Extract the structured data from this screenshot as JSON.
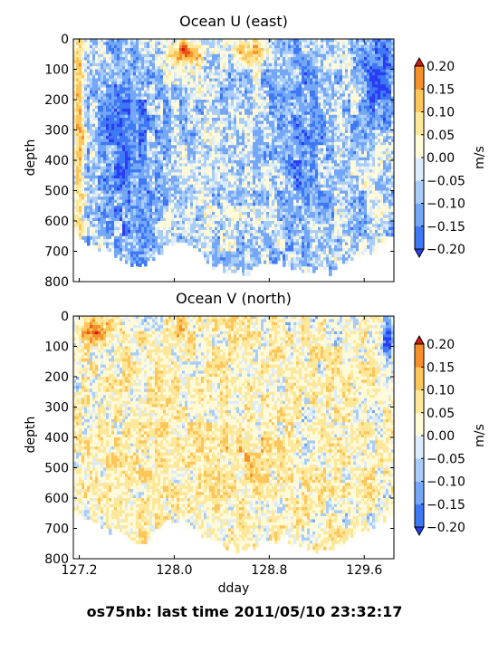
{
  "figure_title": "os75nb: last time 2011/05/10 23:32:17",
  "colors": {
    "neg_020": "#2b3cf5",
    "neg_015": "#3f78f5",
    "neg_010": "#74a7f7",
    "neg_005": "#a9cdf9",
    "zero_lo": "#dcecfb",
    "zero_hi": "#fffad9",
    "pos_005": "#fde79a",
    "pos_010": "#fdc65a",
    "pos_015": "#f7902a",
    "pos_020": "#e8541c",
    "extreme": "#d11a10",
    "outside": "#ffffff"
  },
  "chart_data": [
    {
      "type": "heatmap",
      "title": "Ocean U (east)",
      "ylabel": "depth",
      "ylim": [
        800,
        0
      ],
      "yticks": [
        "0",
        "100",
        "200",
        "300",
        "400",
        "500",
        "600",
        "700",
        "800"
      ],
      "xlim": [
        127.15,
        129.85
      ],
      "xticks_visible": false,
      "colorbar": {
        "label": "m/s",
        "levels": [
          -0.2,
          -0.15,
          -0.1,
          -0.05,
          0.0,
          0.05,
          0.1,
          0.15,
          0.2
        ],
        "ticks": [
          "0.20",
          "0.15",
          "0.10",
          "0.05",
          "0.00",
          "−0.05",
          "−0.10",
          "−0.15",
          "−0.20"
        ],
        "extend": "both"
      },
      "bottom_depth_profile": {
        "dday": [
          127.15,
          127.3,
          127.45,
          127.6,
          127.75,
          127.85,
          128.0,
          128.15,
          128.3,
          128.45,
          128.6,
          128.75,
          128.9,
          129.05,
          129.2,
          129.35,
          129.5,
          129.65,
          129.8,
          129.85
        ],
        "depth": [
          640,
          670,
          700,
          730,
          760,
          700,
          670,
          690,
          740,
          760,
          770,
          740,
          730,
          760,
          770,
          760,
          730,
          700,
          660,
          660
        ]
      },
      "description_regions": [
        {
          "name": "east-edge-positive",
          "dday": [
            127.15,
            127.25
          ],
          "depth": [
            0,
            640
          ],
          "value": 0.15
        },
        {
          "name": "surface-jet-positive",
          "dday": [
            127.95,
            128.25
          ],
          "depth": [
            0,
            90
          ],
          "value": 0.22
        },
        {
          "name": "westward-band",
          "dday": [
            127.35,
            127.85
          ],
          "depth": [
            0,
            700
          ],
          "value": -0.12
        },
        {
          "name": "westward-band-2",
          "dday": [
            128.85,
            129.3
          ],
          "depth": [
            50,
            600
          ],
          "value": -0.1
        },
        {
          "name": "surface-positive-2",
          "dday": [
            128.5,
            128.8
          ],
          "depth": [
            0,
            100
          ],
          "value": 0.15
        },
        {
          "name": "east-surface-negative",
          "dday": [
            129.6,
            129.85
          ],
          "depth": [
            0,
            250
          ],
          "value": -0.17
        }
      ]
    },
    {
      "type": "heatmap",
      "title": "Ocean V (north)",
      "ylabel": "depth",
      "xlabel": "dday",
      "ylim": [
        800,
        0
      ],
      "yticks": [
        "0",
        "100",
        "200",
        "300",
        "400",
        "500",
        "600",
        "700",
        "800"
      ],
      "xlim": [
        127.15,
        129.85
      ],
      "xticks": [
        "127.2",
        "128.0",
        "128.8",
        "129.6"
      ],
      "colorbar": {
        "label": "m/s",
        "levels": [
          -0.2,
          -0.15,
          -0.1,
          -0.05,
          0.0,
          0.05,
          0.1,
          0.15,
          0.2
        ],
        "ticks": [
          "0.20",
          "0.15",
          "0.10",
          "0.05",
          "0.00",
          "−0.05",
          "−0.10",
          "−0.15",
          "−0.20"
        ],
        "extend": "both"
      },
      "bottom_depth_profile": {
        "dday": [
          127.15,
          127.3,
          127.45,
          127.6,
          127.75,
          127.85,
          128.0,
          128.15,
          128.3,
          128.45,
          128.6,
          128.75,
          128.9,
          129.05,
          129.2,
          129.35,
          129.5,
          129.65,
          129.8,
          129.85
        ],
        "depth": [
          640,
          670,
          700,
          730,
          760,
          700,
          670,
          690,
          740,
          760,
          770,
          740,
          730,
          760,
          770,
          760,
          730,
          700,
          660,
          660
        ]
      },
      "description_regions": [
        {
          "name": "surface-red-1",
          "dday": [
            127.2,
            127.45
          ],
          "depth": [
            0,
            80
          ],
          "value": 0.2
        },
        {
          "name": "surface-red-2",
          "dday": [
            128.0,
            128.1
          ],
          "depth": [
            0,
            80
          ],
          "value": 0.2
        },
        {
          "name": "mid-positive",
          "dday": [
            127.45,
            128.0
          ],
          "depth": [
            150,
            750
          ],
          "value": 0.07
        },
        {
          "name": "mid-positive-2",
          "dday": [
            128.3,
            128.9
          ],
          "depth": [
            200,
            760
          ],
          "value": 0.07
        },
        {
          "name": "east-surface-negative",
          "dday": [
            129.75,
            129.85
          ],
          "depth": [
            0,
            150
          ],
          "value": -0.15
        }
      ]
    }
  ]
}
